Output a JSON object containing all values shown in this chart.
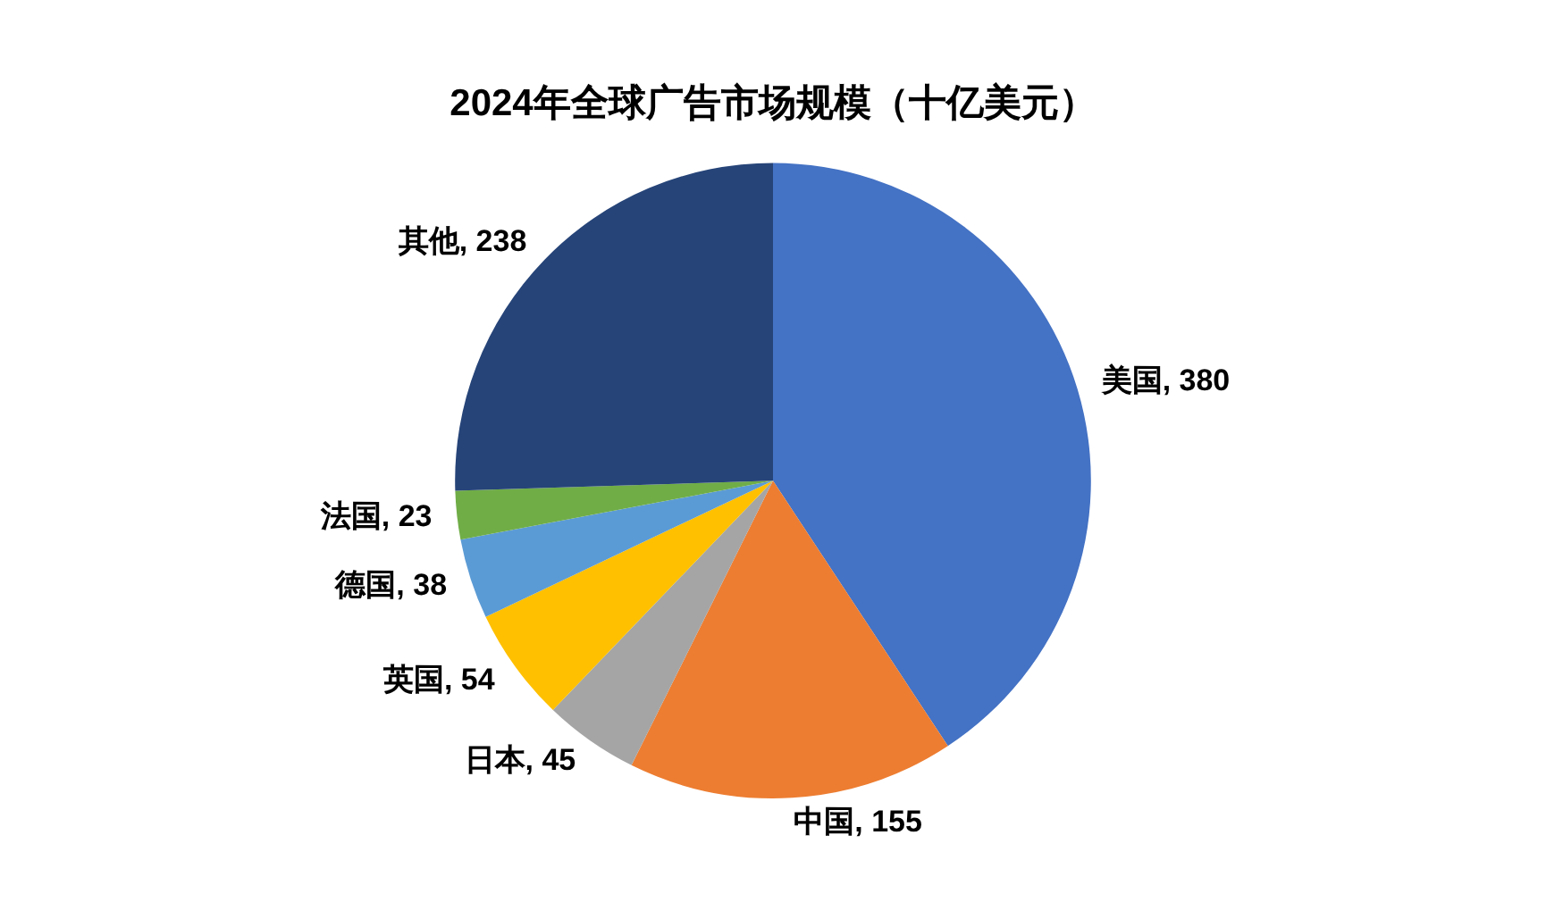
{
  "chart_data": {
    "type": "pie",
    "title": "2024年全球广告市场规模（十亿美元）",
    "categories": [
      "美国",
      "中国",
      "日本",
      "英国",
      "德国",
      "法国",
      "其他"
    ],
    "values": [
      380,
      155,
      45,
      54,
      38,
      23,
      238
    ],
    "value_labels": [
      ", 380",
      ", 155",
      ", 45",
      ", 54",
      ", 38",
      ", 23",
      ", 238"
    ],
    "colors": [
      "#4472c4",
      "#ed7d31",
      "#a5a5a5",
      "#ffc000",
      "#5b9bd5",
      "#70ad47",
      "#264478"
    ],
    "legend": false
  }
}
